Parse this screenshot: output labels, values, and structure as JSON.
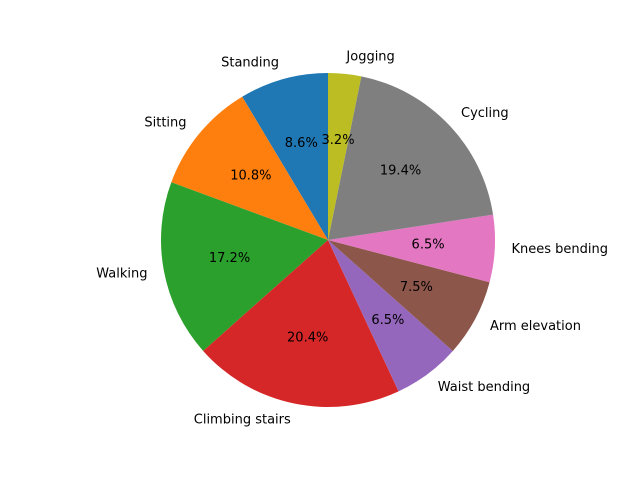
{
  "chart_data": {
    "type": "pie",
    "title": "",
    "labels": [
      "Standing",
      "Sitting",
      "Walking",
      "Climbing stairs",
      "Waist bending",
      "Arm elevation",
      "Knees bending",
      "Cycling",
      "Jogging"
    ],
    "values": [
      8.6,
      10.8,
      17.2,
      20.4,
      6.5,
      7.5,
      6.5,
      19.4,
      3.2
    ],
    "percent_labels": [
      "8.6%",
      "10.8%",
      "17.2%",
      "20.4%",
      "6.5%",
      "7.5%",
      "6.5%",
      "19.4%",
      "3.2%"
    ],
    "colors": [
      "#1f77b4",
      "#ff7f0e",
      "#2ca02c",
      "#d62728",
      "#9467bd",
      "#8c564b",
      "#e377c2",
      "#7f7f7f",
      "#bcbd22"
    ],
    "start_angle_deg": 90,
    "direction": "counterclockwise",
    "legend": "none"
  }
}
